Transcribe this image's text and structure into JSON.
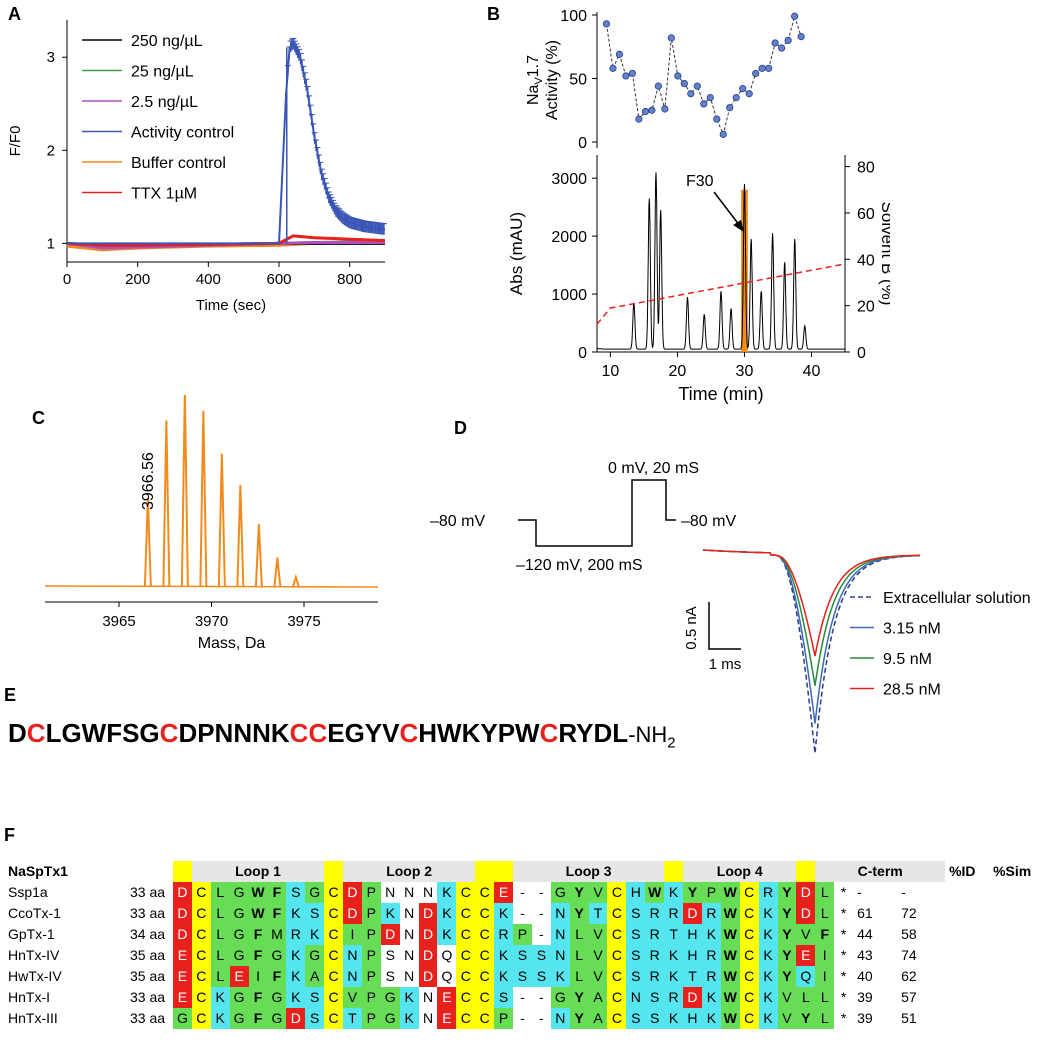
{
  "panel_labels": {
    "a": "A",
    "b": "B",
    "c": "C",
    "d": "D",
    "e": "E",
    "f": "F"
  },
  "chart_data": [
    {
      "panel": "A",
      "type": "line",
      "xlabel": "Time (sec)",
      "ylabel": "F/F0",
      "xlim": [
        0,
        900
      ],
      "ylim": [
        0.8,
        3.4
      ],
      "xticks": [
        "0",
        "200",
        "400",
        "600",
        "800"
      ],
      "yticks": [
        "1",
        "2",
        "3"
      ],
      "legend": [
        {
          "label": "250 ng/µL",
          "color": "#000000"
        },
        {
          "label": "25 ng/µL",
          "color": "#3aa04a"
        },
        {
          "label": "2.5 ng/µL",
          "color": "#b04fbf"
        },
        {
          "label": "Activity control",
          "color": "#3a55b5"
        },
        {
          "label": "Buffer control",
          "color": "#f28a1c"
        },
        {
          "label": "TTX 1µM",
          "color": "#e8211c"
        }
      ],
      "series": [
        {
          "name": "250 ng/µL",
          "x": [
            0,
            100,
            200,
            400,
            600,
            700,
            900
          ],
          "y": [
            1.0,
            0.97,
            0.98,
            0.99,
            1.0,
            1.0,
            1.0
          ]
        },
        {
          "name": "25 ng/µL",
          "x": [
            0,
            100,
            200,
            400,
            600,
            700,
            900
          ],
          "y": [
            1.0,
            0.96,
            0.97,
            0.98,
            1.0,
            1.01,
            1.02
          ]
        },
        {
          "name": "2.5 ng/µL",
          "x": [
            0,
            100,
            200,
            400,
            600,
            700,
            900
          ],
          "y": [
            1.0,
            0.95,
            0.96,
            0.98,
            1.0,
            1.01,
            1.01
          ]
        },
        {
          "name": "Activity control",
          "x": [
            0,
            300,
            600,
            620,
            630,
            640,
            660,
            680,
            700,
            720,
            740,
            760,
            780,
            800,
            840,
            900
          ],
          "y": [
            1.0,
            1.0,
            1.0,
            2.6,
            3.1,
            3.15,
            3.0,
            2.65,
            2.15,
            1.75,
            1.5,
            1.35,
            1.27,
            1.22,
            1.18,
            1.15
          ]
        },
        {
          "name": "Buffer control",
          "x": [
            0,
            100,
            200,
            400,
            600,
            700,
            900
          ],
          "y": [
            0.97,
            0.93,
            0.95,
            0.97,
            0.98,
            1.0,
            1.02
          ]
        },
        {
          "name": "TTX 1µM",
          "x": [
            0,
            100,
            200,
            400,
            600,
            640,
            700,
            900
          ],
          "y": [
            1.0,
            0.98,
            0.98,
            0.99,
            1.0,
            1.08,
            1.06,
            1.03
          ]
        }
      ]
    },
    {
      "panel": "B-top",
      "type": "scatter",
      "ylabel_main": "Na",
      "ylabel_sub": "V",
      "ylabel_rest": "1.7",
      "ylabel_line2": "Activity (%)",
      "ylim": [
        0,
        100
      ],
      "yticks": [
        "0",
        "50",
        "100"
      ],
      "x": [
        9,
        10,
        11,
        12,
        13,
        14,
        15,
        16,
        17,
        18,
        19,
        20,
        21,
        22,
        23,
        24,
        25,
        26,
        27,
        28,
        29,
        30,
        31,
        32,
        33,
        34,
        35,
        36,
        37,
        38,
        39
      ],
      "values": [
        93,
        58,
        69,
        52,
        54,
        18,
        24,
        25,
        44,
        26,
        82,
        52,
        46,
        38,
        44,
        30,
        35,
        18,
        6,
        27,
        35,
        42,
        38,
        54,
        58,
        58,
        78,
        74,
        80,
        99,
        83
      ]
    },
    {
      "panel": "B-bottom",
      "type": "line",
      "xlabel": "Time (min)",
      "ylabel": "Abs (mAU)",
      "ylabel_right": "Solvent B (%)",
      "xlim": [
        8,
        45
      ],
      "ylim": [
        0,
        3400
      ],
      "ylim_right": [
        0,
        85
      ],
      "xticks": [
        "10",
        "20",
        "30",
        "40"
      ],
      "yticks": [
        "0",
        "1000",
        "2000",
        "3000"
      ],
      "yticks_right": [
        "0",
        "20",
        "40",
        "60",
        "80"
      ],
      "annotation": "F30",
      "highlight_color": "#f28a1c",
      "series": [
        {
          "name": "Absorbance",
          "peaks": [
            {
              "x": 13.5,
              "y": 800
            },
            {
              "x": 15.8,
              "y": 2600
            },
            {
              "x": 16.8,
              "y": 3050
            },
            {
              "x": 17.5,
              "y": 2400
            },
            {
              "x": 21.5,
              "y": 900
            },
            {
              "x": 24,
              "y": 600
            },
            {
              "x": 26.5,
              "y": 1000
            },
            {
              "x": 28,
              "y": 700
            },
            {
              "x": 30,
              "y": 2850
            },
            {
              "x": 31,
              "y": 1900
            },
            {
              "x": 32.5,
              "y": 1000
            },
            {
              "x": 34.2,
              "y": 2000
            },
            {
              "x": 36,
              "y": 1500
            },
            {
              "x": 37.5,
              "y": 1900
            },
            {
              "x": 39,
              "y": 400
            }
          ]
        },
        {
          "name": "Solvent B",
          "x": [
            8,
            10,
            12,
            45
          ],
          "y": [
            12,
            19,
            20,
            38
          ]
        }
      ]
    },
    {
      "panel": "C",
      "type": "bar",
      "xlabel": "Mass, Da",
      "xlim": [
        3961,
        3979
      ],
      "xticks": [
        "3965",
        "3970",
        "3975"
      ],
      "annotation": "3966.56",
      "color": "#f28a1c",
      "x": [
        3966.56,
        3967.56,
        3968.56,
        3969.56,
        3970.56,
        3971.56,
        3972.56,
        3973.56,
        3974.56
      ],
      "values": [
        45,
        85,
        100,
        90,
        68,
        52,
        32,
        15,
        5
      ]
    },
    {
      "panel": "D",
      "type": "line",
      "protocol_labels": [
        "–80 mV",
        "–120 mV, 200 mS",
        "0 mV, 20 mS",
        "–80 mV"
      ],
      "scalebar_y": "0.5 nA",
      "scalebar_x": "1 ms",
      "legend": [
        {
          "label": "Extracellular solution",
          "color": "#2b3a8c",
          "dash": true
        },
        {
          "label": "3.15 nM",
          "color": "#3a6ab5"
        },
        {
          "label": "9.5 nM",
          "color": "#2a8a3a"
        },
        {
          "label": "28.5 nM",
          "color": "#e8211c"
        }
      ],
      "series": [
        {
          "name": "Extracellular solution",
          "peak": 1.0
        },
        {
          "name": "3.15 nM",
          "peak": 0.85
        },
        {
          "name": "9.5 nM",
          "peak": 0.66
        },
        {
          "name": "28.5 nM",
          "peak": 0.51
        }
      ]
    }
  ],
  "sequence_parts": [
    {
      "t": "D",
      "c": false
    },
    {
      "t": "C",
      "c": true
    },
    {
      "t": "LGWFSG",
      "c": false
    },
    {
      "t": "C",
      "c": true
    },
    {
      "t": "DPNNNK",
      "c": false
    },
    {
      "t": "CC",
      "c": true
    },
    {
      "t": "EGYV",
      "c": false
    },
    {
      "t": "C",
      "c": true
    },
    {
      "t": "HWKYPW",
      "c": false
    },
    {
      "t": "C",
      "c": true
    },
    {
      "t": "RYDL",
      "c": false
    }
  ],
  "sequence_suffix": "-NH",
  "sequence_suffix_sub": "2",
  "alignment": {
    "title": "NaSpTx1",
    "loops": [
      {
        "label": "Loop 1",
        "span": 7
      },
      {
        "label": "Loop 2",
        "span": 7
      },
      {
        "label": "Loop 3",
        "span": 8
      },
      {
        "label": "Loop 4",
        "span": 6
      },
      {
        "label": "C-term",
        "span": 5
      }
    ],
    "col_id": "%ID",
    "col_sim": "%Sim",
    "rows": [
      {
        "name": "Ssp1a",
        "len": "33 aa",
        "res": "DCLGWFSGCDPNNNKCCE--GYVCHWKYPWCRYDL*",
        "id": "-",
        "sim": "-"
      },
      {
        "name": "CcoTx-1",
        "len": "33 aa",
        "res": "DCLGWFKSCDPKNDKCCK--NYTCSRRDRWCKYDL*",
        "id": "61",
        "sim": "72"
      },
      {
        "name": "GpTx-1",
        "len": "34 aa",
        "res": "DCLGFMRKCIPDNDKCCRP-NLVCSRTHKWCKYVF*",
        "id": "44",
        "sim": "58"
      },
      {
        "name": "HnTx-IV",
        "len": "35 aa",
        "res": "ECLGFGKGCNPSNDQCCKSSNLVCSRKHRWCKYEI*",
        "id": "43",
        "sim": "74"
      },
      {
        "name": "HwTx-IV",
        "len": "35 aa",
        "res": "ECLEIFKACNPSNDQCCKSSKLVCSRKTRWCKYQI*",
        "id": "40",
        "sim": "62"
      },
      {
        "name": "HnTx-I",
        "len": "33 aa",
        "res": "ECKGFGKSCVPGKNECCS--GYACNSRDKWCKVLL*",
        "id": "39",
        "sim": "57"
      },
      {
        "name": "HnTx-III",
        "len": "33 aa",
        "res": "GCKGFGDSCTPGKNECCP--NYACSSKHKWCKVYL*",
        "id": "39",
        "sim": "51"
      }
    ]
  },
  "colors": {
    "acidic": "#e8211c",
    "cys": "#ffff00",
    "hydrophobic": "#66dd55",
    "basic": "#55e5ee",
    "grey": "#e6e6e6",
    "orange": "#f28a1c"
  }
}
